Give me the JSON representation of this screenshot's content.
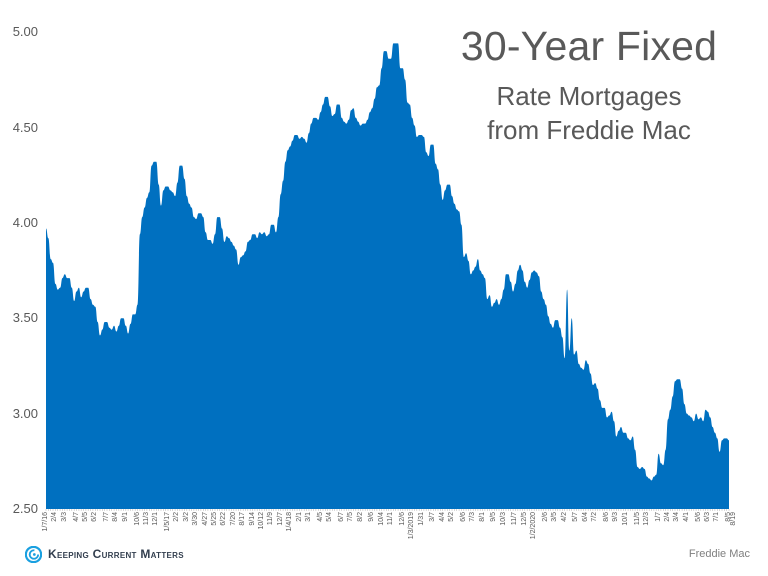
{
  "title": {
    "main": "30-Year Fixed",
    "line2": "Rate Mortgages",
    "line3": "from Freddie Mac"
  },
  "footer": {
    "logo_text": "Keeping Current Matters",
    "source": "Freddie Mac"
  },
  "colors": {
    "area_fill": "#0070c0",
    "text": "#595959",
    "logo_blue": "#1aa0e0"
  },
  "chart_data": {
    "type": "area",
    "title": "30-Year Fixed Rate Mortgages from Freddie Mac",
    "xlabel": "",
    "ylabel": "",
    "ylim": [
      2.5,
      5.0
    ],
    "yticks": [
      "5.00",
      "4.50",
      "4.00",
      "3.50",
      "3.00",
      "2.50"
    ],
    "grid": false,
    "legend": null,
    "x_tick_labels": [
      "1/7/16",
      "2/4",
      "3/3",
      "4/7",
      "5/5",
      "6/2",
      "7/7",
      "8/4",
      "9/1",
      "10/6",
      "11/3",
      "12/1",
      "1/5/17",
      "2/2",
      "3/2",
      "3/30",
      "4/27",
      "5/25",
      "6/22",
      "7/20",
      "8/17",
      "9/14",
      "10/12",
      "11/9",
      "12/7",
      "1/4/18",
      "2/1",
      "3/1",
      "4/5",
      "5/4",
      "6/7",
      "7/5",
      "8/2",
      "9/6",
      "10/4",
      "11/1",
      "12/6",
      "1/3/2019",
      "1/31",
      "3/7",
      "4/4",
      "5/2",
      "6/6",
      "7/3",
      "8/1",
      "9/5",
      "10/3",
      "11/7",
      "12/5",
      "1/2/2020",
      "2/6",
      "3/5",
      "4/2",
      "5/7",
      "6/4",
      "7/2",
      "8/6",
      "9/3",
      "10/1",
      "11/5",
      "12/3",
      "1/7",
      "2/4",
      "3/4",
      "4/1",
      "5/6",
      "6/3",
      "7/1",
      "8/5",
      "8/19"
    ],
    "x_tick_pos": [
      0,
      4,
      8,
      13,
      17,
      21,
      26,
      30,
      34,
      39,
      43,
      47,
      52,
      56,
      60,
      64,
      68,
      72,
      76,
      80,
      84,
      88,
      92,
      96,
      100,
      104,
      108,
      112,
      117,
      121,
      126,
      130,
      134,
      139,
      143,
      147,
      152,
      156,
      160,
      165,
      169,
      173,
      178,
      182,
      186,
      191,
      195,
      200,
      204,
      208,
      213,
      217,
      221,
      226,
      230,
      234,
      239,
      243,
      247,
      252,
      256,
      261,
      265,
      269,
      273,
      278,
      282,
      286,
      291,
      293
    ],
    "series": [
      {
        "name": "30-Year Fixed Rate",
        "values": [
          3.97,
          3.92,
          3.81,
          3.79,
          3.68,
          3.65,
          3.66,
          3.71,
          3.73,
          3.71,
          3.71,
          3.66,
          3.59,
          3.64,
          3.66,
          3.61,
          3.64,
          3.66,
          3.66,
          3.6,
          3.57,
          3.56,
          3.48,
          3.41,
          3.44,
          3.48,
          3.48,
          3.45,
          3.44,
          3.46,
          3.43,
          3.46,
          3.5,
          3.5,
          3.46,
          3.42,
          3.47,
          3.52,
          3.52,
          3.57,
          3.94,
          4.03,
          4.08,
          4.13,
          4.16,
          4.3,
          4.32,
          4.32,
          4.2,
          4.09,
          4.17,
          4.19,
          4.19,
          4.17,
          4.16,
          4.14,
          4.21,
          4.3,
          4.3,
          4.23,
          4.14,
          4.1,
          4.08,
          4.03,
          4.02,
          4.05,
          4.05,
          4.03,
          3.95,
          3.91,
          3.91,
          3.89,
          3.94,
          4.03,
          4.03,
          3.97,
          3.9,
          3.93,
          3.92,
          3.9,
          3.88,
          3.86,
          3.78,
          3.82,
          3.83,
          3.85,
          3.9,
          3.91,
          3.94,
          3.94,
          3.92,
          3.95,
          3.94,
          3.95,
          3.93,
          3.94,
          3.99,
          3.99,
          3.95,
          4.03,
          4.15,
          4.22,
          4.32,
          4.38,
          4.4,
          4.43,
          4.46,
          4.46,
          4.44,
          4.45,
          4.44,
          4.42,
          4.47,
          4.52,
          4.55,
          4.55,
          4.54,
          4.58,
          4.62,
          4.66,
          4.66,
          4.61,
          4.56,
          4.57,
          4.62,
          4.62,
          4.55,
          4.53,
          4.52,
          4.54,
          4.59,
          4.6,
          4.55,
          4.53,
          4.51,
          4.52,
          4.52,
          4.54,
          4.58,
          4.6,
          4.65,
          4.71,
          4.72,
          4.81,
          4.9,
          4.9,
          4.86,
          4.86,
          4.94,
          4.94,
          4.94,
          4.81,
          4.81,
          4.75,
          4.63,
          4.62,
          4.55,
          4.51,
          4.45,
          4.46,
          4.46,
          4.45,
          4.37,
          4.35,
          4.41,
          4.41,
          4.31,
          4.28,
          4.2,
          4.12,
          4.17,
          4.2,
          4.2,
          4.14,
          4.1,
          4.07,
          4.06,
          3.99,
          3.82,
          3.84,
          3.8,
          3.73,
          3.75,
          3.77,
          3.81,
          3.75,
          3.73,
          3.71,
          3.6,
          3.62,
          3.56,
          3.58,
          3.6,
          3.57,
          3.6,
          3.65,
          3.73,
          3.73,
          3.69,
          3.64,
          3.68,
          3.75,
          3.78,
          3.75,
          3.69,
          3.66,
          3.7,
          3.74,
          3.75,
          3.74,
          3.72,
          3.64,
          3.6,
          3.57,
          3.51,
          3.47,
          3.45,
          3.49,
          3.49,
          3.45,
          3.4,
          3.29,
          3.65,
          3.33,
          3.5,
          3.31,
          3.33,
          3.26,
          3.24,
          3.23,
          3.28,
          3.26,
          3.21,
          3.15,
          3.16,
          3.13,
          3.07,
          3.03,
          3.03,
          2.98,
          2.99,
          3.01,
          2.96,
          2.88,
          2.91,
          2.93,
          2.9,
          2.9,
          2.87,
          2.86,
          2.88,
          2.81,
          2.72,
          2.71,
          2.72,
          2.71,
          2.67,
          2.66,
          2.65,
          2.67,
          2.68,
          2.79,
          2.74,
          2.73,
          2.81,
          2.97,
          3.02,
          3.09,
          3.17,
          3.18,
          3.18,
          3.13,
          3.05,
          3.0,
          2.99,
          2.98,
          2.96,
          3.0,
          2.97,
          2.98,
          2.96,
          3.02,
          3.01,
          2.98,
          2.93,
          2.9,
          2.87,
          2.8,
          2.86,
          2.87,
          2.87,
          2.86
        ]
      }
    ]
  }
}
